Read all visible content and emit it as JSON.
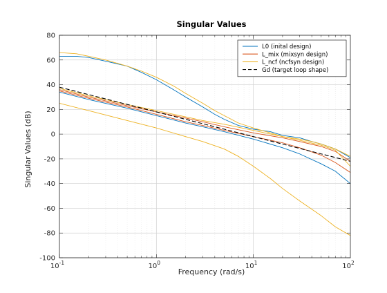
{
  "chart_data": {
    "type": "line",
    "title": "Singular Values",
    "xlabel": "Frequency (rad/s)",
    "ylabel": "Singular Values (dB)",
    "xscale": "log",
    "xlim": [
      0.1,
      100
    ],
    "ylim": [
      -100,
      80
    ],
    "yticks": [
      -100,
      -80,
      -60,
      -40,
      -20,
      0,
      20,
      40,
      60,
      80
    ],
    "xticks": [
      {
        "value": 0.1,
        "base": "10",
        "exp": "-1"
      },
      {
        "value": 1,
        "base": "10",
        "exp": "0"
      },
      {
        "value": 10,
        "base": "10",
        "exp": "1"
      },
      {
        "value": 100,
        "base": "10",
        "exp": "2"
      }
    ],
    "grid": true,
    "legend_position": "top-right",
    "legend": [
      {
        "label": "L0 (inital design)",
        "color": "#0072bd",
        "dash": "solid"
      },
      {
        "label": "L_mix (mixsyn design)",
        "color": "#d95319",
        "dash": "solid"
      },
      {
        "label": "L_ncf (ncfsyn design)",
        "color": "#edb120",
        "dash": "solid"
      },
      {
        "label": "Gd (target loop shape)",
        "color": "#000000",
        "dash": "dashed"
      }
    ],
    "series": [
      {
        "group": "L0",
        "color": "#0072bd",
        "dash": "solid",
        "points": [
          [
            0.1,
            63
          ],
          [
            0.15,
            63
          ],
          [
            0.2,
            62
          ],
          [
            0.3,
            59
          ],
          [
            0.5,
            55
          ],
          [
            0.7,
            50
          ],
          [
            1,
            44
          ],
          [
            1.5,
            36
          ],
          [
            2,
            30
          ],
          [
            3,
            22
          ],
          [
            4,
            16
          ],
          [
            5,
            12
          ],
          [
            7,
            7
          ],
          [
            10,
            4
          ],
          [
            15,
            2
          ],
          [
            20,
            -1
          ],
          [
            30,
            -3
          ],
          [
            40,
            -6
          ],
          [
            50,
            -8
          ],
          [
            70,
            -12
          ],
          [
            100,
            -19
          ]
        ]
      },
      {
        "group": "L0",
        "color": "#0072bd",
        "dash": "solid",
        "points": [
          [
            0.1,
            34
          ],
          [
            0.2,
            28
          ],
          [
            0.5,
            21
          ],
          [
            1,
            15
          ],
          [
            2,
            9
          ],
          [
            3,
            6
          ],
          [
            5,
            2
          ],
          [
            10,
            -4
          ],
          [
            20,
            -11
          ],
          [
            30,
            -16
          ],
          [
            50,
            -24
          ],
          [
            70,
            -30
          ],
          [
            100,
            -40
          ]
        ]
      },
      {
        "group": "L_mix",
        "color": "#d95319",
        "dash": "solid",
        "points": [
          [
            0.1,
            36
          ],
          [
            0.2,
            30
          ],
          [
            0.5,
            23
          ],
          [
            1,
            18
          ],
          [
            2,
            13
          ],
          [
            3,
            10
          ],
          [
            5,
            6
          ],
          [
            10,
            1
          ],
          [
            20,
            -3
          ],
          [
            30,
            -6
          ],
          [
            50,
            -10
          ],
          [
            70,
            -14
          ],
          [
            100,
            -22
          ]
        ]
      },
      {
        "group": "L_mix",
        "color": "#d95319",
        "dash": "solid",
        "points": [
          [
            0.1,
            35
          ],
          [
            0.2,
            29
          ],
          [
            0.5,
            22
          ],
          [
            1,
            16
          ],
          [
            2,
            10
          ],
          [
            3,
            7
          ],
          [
            5,
            3
          ],
          [
            10,
            -2
          ],
          [
            20,
            -7
          ],
          [
            30,
            -11
          ],
          [
            50,
            -17
          ],
          [
            70,
            -23
          ],
          [
            100,
            -31
          ]
        ]
      },
      {
        "group": "L_ncf",
        "color": "#edb120",
        "dash": "solid",
        "points": [
          [
            0.1,
            66
          ],
          [
            0.15,
            65
          ],
          [
            0.2,
            63
          ],
          [
            0.3,
            60
          ],
          [
            0.5,
            55
          ],
          [
            0.7,
            51
          ],
          [
            1,
            46
          ],
          [
            1.5,
            39
          ],
          [
            2,
            33
          ],
          [
            3,
            25
          ],
          [
            4,
            19
          ],
          [
            5,
            15
          ],
          [
            7,
            9
          ],
          [
            10,
            5
          ],
          [
            15,
            1
          ],
          [
            20,
            -2
          ],
          [
            30,
            -4
          ],
          [
            40,
            -6
          ],
          [
            50,
            -8
          ],
          [
            70,
            -12
          ],
          [
            100,
            -18
          ]
        ]
      },
      {
        "group": "L_ncf",
        "color": "#edb120",
        "dash": "solid",
        "points": [
          [
            0.1,
            25
          ],
          [
            0.2,
            19
          ],
          [
            0.5,
            11
          ],
          [
            1,
            5
          ],
          [
            2,
            -2
          ],
          [
            3,
            -6
          ],
          [
            5,
            -12
          ],
          [
            7,
            -18
          ],
          [
            10,
            -26
          ],
          [
            15,
            -36
          ],
          [
            20,
            -44
          ],
          [
            30,
            -54
          ],
          [
            50,
            -66
          ],
          [
            70,
            -75
          ],
          [
            100,
            -82
          ]
        ]
      },
      {
        "group": "L_ncf",
        "color": "#edb120",
        "dash": "solid",
        "points": [
          [
            0.1,
            37
          ],
          [
            0.2,
            31
          ],
          [
            0.5,
            24
          ],
          [
            1,
            19
          ],
          [
            2,
            14
          ],
          [
            3,
            11
          ],
          [
            5,
            8
          ],
          [
            10,
            3
          ],
          [
            20,
            -2
          ],
          [
            30,
            -5
          ],
          [
            50,
            -9
          ],
          [
            70,
            -13
          ],
          [
            100,
            -26
          ]
        ]
      },
      {
        "group": "Gd",
        "color": "#000000",
        "dash": "dashed",
        "points": [
          [
            0.1,
            38
          ],
          [
            100,
            -22
          ]
        ]
      }
    ]
  }
}
